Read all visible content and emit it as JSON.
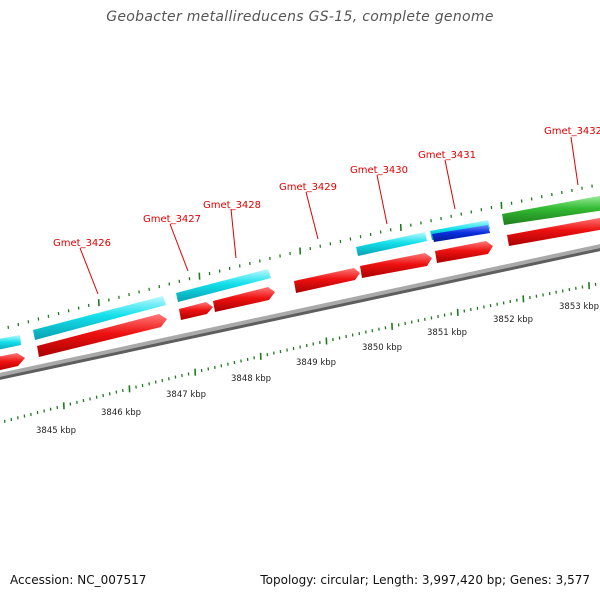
{
  "title": "Geobacter metallireducens GS-15, complete genome",
  "footer": {
    "accession": "Accession: NC_007517",
    "topology": "Topology: circular; Length: 3,997,420 bp; Genes: 3,577"
  },
  "colors": {
    "backbone": "#808080",
    "tick": "#1f7a1f",
    "label": "#dd0000",
    "forward_cds": "#00e5e5",
    "reverse_cds": "#ee1111",
    "rna": "#0033dd",
    "other": "#33bb33"
  },
  "genes": [
    {
      "label": "Gmet_3426"
    },
    {
      "label": "Gmet_3427"
    },
    {
      "label": "Gmet_3428"
    },
    {
      "label": "Gmet_3429"
    },
    {
      "label": "Gmet_3430"
    },
    {
      "label": "Gmet_3431"
    },
    {
      "label": "Gmet_3432"
    }
  ],
  "ruler": {
    "labels": [
      "3845 kbp",
      "3846 kbp",
      "3847 kbp",
      "3848 kbp",
      "3849 kbp",
      "3850 kbp",
      "3851 kbp",
      "3852 kbp",
      "3853 kbp"
    ]
  }
}
